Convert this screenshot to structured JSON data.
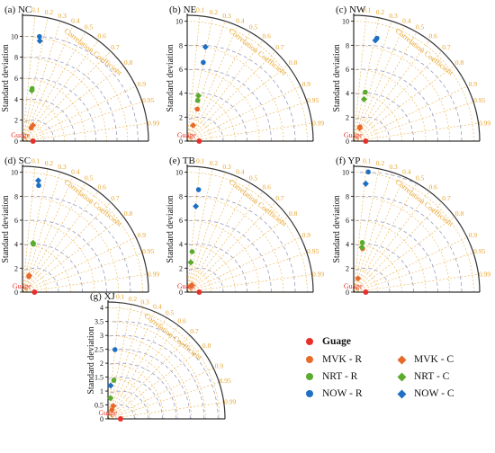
{
  "colors": {
    "guage": "#e8302a",
    "mvk": "#e86a2a",
    "nrt": "#5aab2e",
    "now": "#1f6fc2",
    "corr": "#e8a42a",
    "rms": "#1f6fc2",
    "ring": "#8a8fb8",
    "outer": "#333333"
  },
  "common": {
    "ylabel": "Standard deviation",
    "corr_title": "Correlation Coefficient",
    "corr_ticks": [
      "0.1",
      "0.2",
      "0.3",
      "0.4",
      "0.5",
      "0.6",
      "0.7",
      "0.8",
      "0.9",
      "0.95",
      "0.99"
    ],
    "ref_label": "Guage"
  },
  "legend": {
    "items": [
      {
        "label": "Guage",
        "marker": "circle",
        "color": "#e8302a"
      },
      {
        "label": "MVK - R",
        "marker": "circle",
        "color": "#e86a2a"
      },
      {
        "label": "MVK - C",
        "marker": "diamond",
        "color": "#e86a2a"
      },
      {
        "label": "NRT - R",
        "marker": "circle",
        "color": "#5aab2e"
      },
      {
        "label": "NRT - C",
        "marker": "diamond",
        "color": "#5aab2e"
      },
      {
        "label": "NOW - R",
        "marker": "circle",
        "color": "#1f6fc2"
      },
      {
        "label": "NOW - C",
        "marker": "diamond",
        "color": "#1f6fc2"
      }
    ]
  },
  "chart_data": [
    {
      "type": "scatter",
      "subtype": "taylor",
      "panel": "(a)",
      "title": "NC",
      "smax": 12,
      "sd_ticks": [
        0,
        2,
        4,
        6,
        8,
        10
      ],
      "ref_sd": 1.0,
      "rms_labels": [
        2,
        4,
        6,
        8,
        10
      ],
      "series": [
        {
          "name": "MVK - R",
          "sd": 1.5,
          "corr": 0.55
        },
        {
          "name": "MVK - C",
          "sd": 1.8,
          "corr": 0.55
        },
        {
          "name": "NRT - R",
          "sd": 5.1,
          "corr": 0.18
        },
        {
          "name": "NRT - C",
          "sd": 4.9,
          "corr": 0.18
        },
        {
          "name": "NOW - R",
          "sd": 10.1,
          "corr": 0.16
        },
        {
          "name": "NOW - C",
          "sd": 9.7,
          "corr": 0.17
        }
      ]
    },
    {
      "type": "scatter",
      "subtype": "taylor",
      "panel": "(b)",
      "title": "NE",
      "smax": 10.5,
      "sd_ticks": [
        0,
        2,
        4,
        6,
        8,
        10
      ],
      "ref_sd": 1.0,
      "rms_labels": [
        2,
        4,
        6,
        8
      ],
      "series": [
        {
          "name": "MVK - R",
          "sd": 2.8,
          "corr": 0.3
        },
        {
          "name": "MVK - C",
          "sd": 1.4,
          "corr": 0.35
        },
        {
          "name": "NRT - R",
          "sd": 3.5,
          "corr": 0.25
        },
        {
          "name": "NRT - C",
          "sd": 3.9,
          "corr": 0.24
        },
        {
          "name": "NOW - R",
          "sd": 6.7,
          "corr": 0.2
        },
        {
          "name": "NOW - C",
          "sd": 8.0,
          "corr": 0.19
        }
      ]
    },
    {
      "type": "scatter",
      "subtype": "taylor",
      "panel": "(c)",
      "title": "NW",
      "smax": 10.5,
      "sd_ticks": [
        0,
        2,
        4,
        6,
        8,
        10
      ],
      "ref_sd": 1.0,
      "rms_labels": [
        2,
        4,
        6,
        8
      ],
      "series": [
        {
          "name": "MVK - R",
          "sd": 1.3,
          "corr": 0.4
        },
        {
          "name": "MVK - C",
          "sd": 1.2,
          "corr": 0.42
        },
        {
          "name": "NRT - R",
          "sd": 4.2,
          "corr": 0.23
        },
        {
          "name": "NRT - C",
          "sd": 3.6,
          "corr": 0.24
        },
        {
          "name": "NOW - R",
          "sd": 8.8,
          "corr": 0.22
        },
        {
          "name": "NOW - C",
          "sd": 8.6,
          "corr": 0.21
        }
      ]
    },
    {
      "type": "scatter",
      "subtype": "taylor",
      "panel": "(d)",
      "title": "SC",
      "smax": 10.5,
      "sd_ticks": [
        0,
        2,
        4,
        6,
        8,
        10
      ],
      "ref_sd": 1.0,
      "rms_labels": [
        2,
        4,
        6,
        8
      ],
      "series": [
        {
          "name": "MVK - R",
          "sd": 1.4,
          "corr": 0.38
        },
        {
          "name": "MVK - C",
          "sd": 1.5,
          "corr": 0.37
        },
        {
          "name": "NRT - R",
          "sd": 4.1,
          "corr": 0.22
        },
        {
          "name": "NRT - C",
          "sd": 4.2,
          "corr": 0.21
        },
        {
          "name": "NOW - R",
          "sd": 9.0,
          "corr": 0.15
        },
        {
          "name": "NOW - C",
          "sd": 9.4,
          "corr": 0.14
        }
      ]
    },
    {
      "type": "scatter",
      "subtype": "taylor",
      "panel": "(e)",
      "title": "TB",
      "smax": 10.5,
      "sd_ticks": [
        0,
        2,
        4,
        6,
        8,
        10
      ],
      "ref_sd": 1.0,
      "rms_labels": [
        2,
        4,
        6,
        8
      ],
      "series": [
        {
          "name": "MVK - R",
          "sd": 0.6,
          "corr": 0.55
        },
        {
          "name": "MVK - C",
          "sd": 0.7,
          "corr": 0.55
        },
        {
          "name": "NRT - R",
          "sd": 3.4,
          "corr": 0.12
        },
        {
          "name": "NRT - C",
          "sd": 2.5,
          "corr": 0.12
        },
        {
          "name": "NOW - R",
          "sd": 8.6,
          "corr": 0.11
        },
        {
          "name": "NOW - C",
          "sd": 7.2,
          "corr": 0.1
        }
      ]
    },
    {
      "type": "scatter",
      "subtype": "taylor",
      "panel": "(f)",
      "title": "YP",
      "smax": 10.5,
      "sd_ticks": [
        0,
        2,
        4,
        6,
        8,
        10
      ],
      "ref_sd": 1.0,
      "rms_labels": [
        2,
        4,
        6,
        8,
        10
      ],
      "series": [
        {
          "name": "MVK - R",
          "sd": 3.7,
          "corr": 0.2
        },
        {
          "name": "MVK - C",
          "sd": 1.2,
          "corr": 0.3
        },
        {
          "name": "NRT - R",
          "sd": 4.2,
          "corr": 0.17
        },
        {
          "name": "NRT - C",
          "sd": 3.8,
          "corr": 0.18
        },
        {
          "name": "NOW - R",
          "sd": 10.1,
          "corr": 0.12
        },
        {
          "name": "NOW - C",
          "sd": 9.1,
          "corr": 0.11
        }
      ]
    },
    {
      "type": "scatter",
      "subtype": "taylor",
      "panel": "(g)",
      "title": "XJ",
      "smax": 4.2,
      "sd_ticks": [
        0,
        0.5,
        1,
        1.5,
        2,
        2.5,
        3,
        3.5,
        4
      ],
      "ref_sd": 0.45,
      "rms_labels": [
        0.5,
        1,
        1.5,
        2,
        2.5,
        3,
        3.5
      ],
      "series": [
        {
          "name": "MVK - R",
          "sd": 0.35,
          "corr": 0.4
        },
        {
          "name": "MVK - C",
          "sd": 0.5,
          "corr": 0.38
        },
        {
          "name": "NRT - R",
          "sd": 1.4,
          "corr": 0.15
        },
        {
          "name": "NRT - C",
          "sd": 0.75,
          "corr": 0.12
        },
        {
          "name": "NOW - R",
          "sd": 2.5,
          "corr": 0.1
        },
        {
          "name": "NOW - C",
          "sd": 1.2,
          "corr": 0.08
        }
      ]
    }
  ]
}
